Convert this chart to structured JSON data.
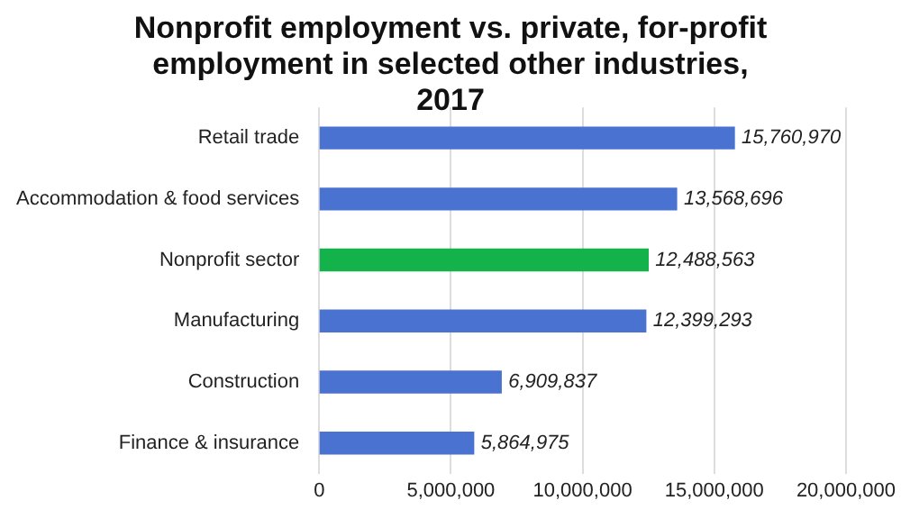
{
  "chart_data": {
    "type": "bar",
    "orientation": "horizontal",
    "title": "Nonprofit employment vs. private, for-profit employment in selected other industries, 2017",
    "categories": [
      "Retail trade",
      "Accommodation & food services",
      "Nonprofit sector",
      "Manufacturing",
      "Construction",
      "Finance & insurance"
    ],
    "values": [
      15760970,
      13568696,
      12488563,
      12399293,
      6909837,
      5864975
    ],
    "colors": [
      "#4a72d0",
      "#4a72d0",
      "#14b24a",
      "#4a72d0",
      "#4a72d0",
      "#4a72d0"
    ],
    "value_labels": [
      "15,760,970",
      "13,568,696",
      "12,488,563",
      "12,399,293",
      "6,909,837",
      "5,864,975"
    ],
    "xlim": [
      0,
      20000000
    ],
    "xticks": [
      {
        "value": 0,
        "label": "0"
      },
      {
        "value": 5000000,
        "label": "5,000,000"
      },
      {
        "value": 10000000,
        "label": "10,000,000"
      },
      {
        "value": 15000000,
        "label": "15,000,000"
      },
      {
        "value": 20000000,
        "label": "20,000,000"
      }
    ],
    "grid": "x",
    "legend": false
  }
}
